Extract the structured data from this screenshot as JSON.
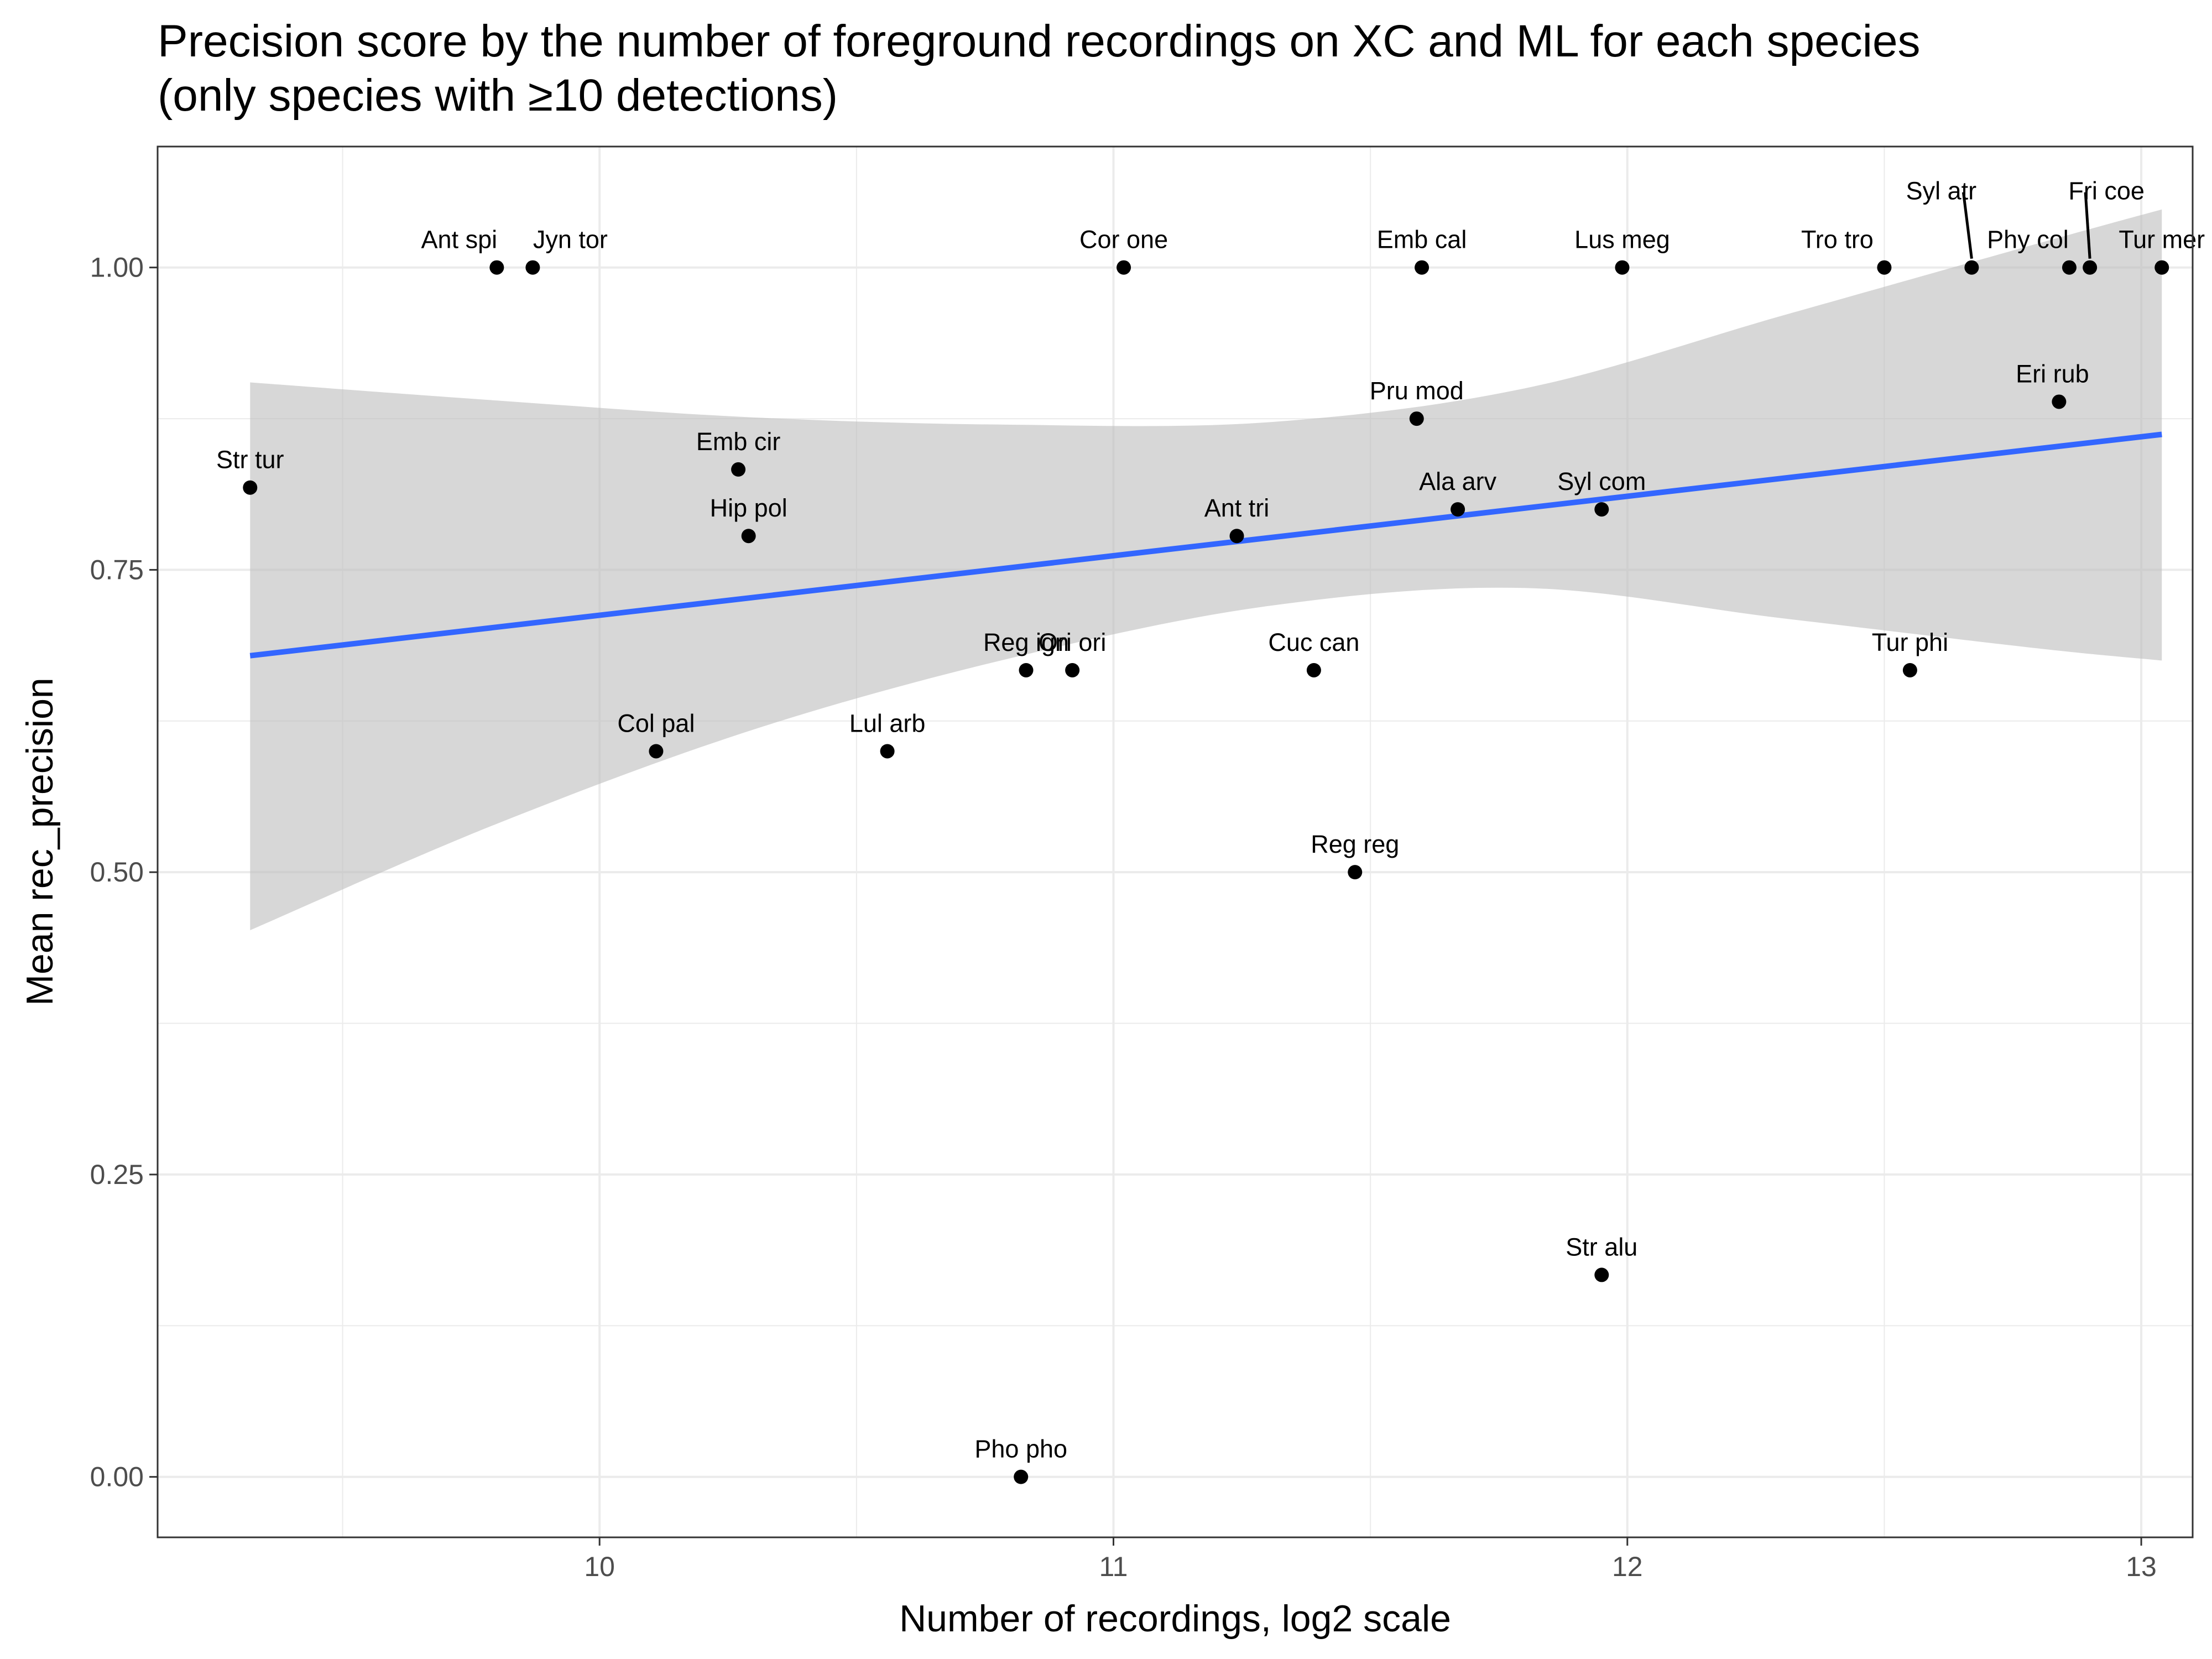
{
  "chart_data": {
    "type": "scatter",
    "title": "Precision score by the number of foreground recordings on XC and ML for each species",
    "subtitle": "(only species with ≥10 detections)",
    "xlabel": "Number of recordings, log2 scale",
    "ylabel": "Mean rec_precision",
    "xlim": [
      9.14,
      13.1
    ],
    "ylim": [
      -0.05,
      1.1
    ],
    "x_ticks": [
      10,
      11,
      12,
      13
    ],
    "x_tick_labels": [
      "10",
      "11",
      "12",
      "13"
    ],
    "y_ticks": [
      0,
      0.25,
      0.5,
      0.75,
      1
    ],
    "y_tick_labels": [
      "0.00",
      "0.25",
      "0.50",
      "0.75",
      "1.00"
    ],
    "grid": true,
    "points": [
      {
        "label": "Ant spi",
        "x": 9.8,
        "y": 1.0
      },
      {
        "label": "Jyn tor",
        "x": 9.87,
        "y": 1.0
      },
      {
        "label": "Cor one",
        "x": 11.02,
        "y": 1.0
      },
      {
        "label": "Emb cal",
        "x": 11.6,
        "y": 1.0
      },
      {
        "label": "Lus meg",
        "x": 11.99,
        "y": 1.0
      },
      {
        "label": "Tro tro",
        "x": 12.5,
        "y": 1.0
      },
      {
        "label": "Syl atr",
        "x": 12.67,
        "y": 1.0
      },
      {
        "label": "Phy col",
        "x": 12.86,
        "y": 1.0
      },
      {
        "label": "Fri coe",
        "x": 12.9,
        "y": 1.0
      },
      {
        "label": "Tur mer",
        "x": 13.04,
        "y": 1.0
      },
      {
        "label": "Eri rub",
        "x": 12.84,
        "y": 0.889
      },
      {
        "label": "Pru mod",
        "x": 11.59,
        "y": 0.875
      },
      {
        "label": "Str tur",
        "x": 9.32,
        "y": 0.818
      },
      {
        "label": "Emb cir",
        "x": 10.27,
        "y": 0.833
      },
      {
        "label": "Ala arv",
        "x": 11.67,
        "y": 0.8
      },
      {
        "label": "Syl com",
        "x": 11.95,
        "y": 0.8
      },
      {
        "label": "Hip pol",
        "x": 10.29,
        "y": 0.778
      },
      {
        "label": "Ant tri",
        "x": 11.24,
        "y": 0.778
      },
      {
        "label": "Reg ign",
        "x": 10.83,
        "y": 0.667
      },
      {
        "label": "Ori ori",
        "x": 10.92,
        "y": 0.667
      },
      {
        "label": "Cuc can",
        "x": 11.39,
        "y": 0.667
      },
      {
        "label": "Tur phi",
        "x": 12.55,
        "y": 0.667
      },
      {
        "label": "Col pal",
        "x": 10.11,
        "y": 0.6
      },
      {
        "label": "Lul arb",
        "x": 10.56,
        "y": 0.6
      },
      {
        "label": "Reg reg",
        "x": 11.47,
        "y": 0.5
      },
      {
        "label": "Str alu",
        "x": 11.95,
        "y": 0.167
      },
      {
        "label": "Pho pho",
        "x": 10.82,
        "y": 0.0
      }
    ],
    "trend_line": {
      "x": [
        9.32,
        13.04
      ],
      "y": [
        0.679,
        0.862
      ]
    },
    "confidence_band": {
      "x": [
        9.32,
        9.8,
        10.3,
        10.8,
        11.3,
        11.8,
        12.3,
        12.8,
        13.04
      ],
      "lower": [
        0.452,
        0.54,
        0.618,
        0.677,
        0.72,
        0.735,
        0.71,
        0.685,
        0.675
      ],
      "upper": [
        0.905,
        0.89,
        0.876,
        0.87,
        0.872,
        0.9,
        0.96,
        1.02,
        1.048
      ]
    },
    "colors": {
      "point": "#000000",
      "trend_line": "#3366ff",
      "band": "#bebebe",
      "grid": "#ebebeb",
      "panel_border": "#333333"
    }
  }
}
